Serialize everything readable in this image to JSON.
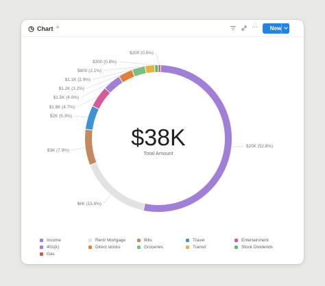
{
  "toolbar": {
    "tab_label": "Chart",
    "add_view": "+",
    "more_label": "···",
    "new_label": "New"
  },
  "center": {
    "value": "$38K",
    "label": "Total Amount"
  },
  "chart_data": {
    "type": "pie",
    "donut": true,
    "slices": [
      {
        "name": "Income",
        "value": 20,
        "label": "$20K (52.8%)",
        "percent": 52.8,
        "color": "#a07fd6"
      },
      {
        "name": "Rent/ Mortgage",
        "value": 6,
        "label": "$6K (15.8%)",
        "percent": 15.8,
        "color": "#e3e2e0"
      },
      {
        "name": "Bills",
        "value": 3,
        "label": "$3K (7.9%)",
        "percent": 7.9,
        "color": "#c48a5e"
      },
      {
        "name": "Travel",
        "value": 2,
        "label": "$2K (5.3%)",
        "percent": 5.3,
        "color": "#3d93d6"
      },
      {
        "name": "Entertainment",
        "value": 1.8,
        "label": "$1.8K (4.7%)",
        "percent": 4.7,
        "color": "#d65a9c"
      },
      {
        "name": "401(k)",
        "value": 1.5,
        "label": "$1.5K (4.0%)",
        "percent": 4.0,
        "color": "#a07fd6"
      },
      {
        "name": "Direct stocks",
        "value": 1.2,
        "label": "$1.2K (3.2%)",
        "percent": 3.2,
        "color": "#e0803a"
      },
      {
        "name": "Groceries",
        "value": 1.1,
        "label": "$1.1K (2.9%)",
        "percent": 2.9,
        "color": "#7bbf82"
      },
      {
        "name": "Transit",
        "value": 0.8,
        "label": "$800 (2.1%)",
        "percent": 2.1,
        "color": "#e0b43e"
      },
      {
        "name": "Stock Dividends",
        "value": 0.3,
        "label": "$300 (0.8%)",
        "percent": 0.8,
        "color": "#5eb87c"
      },
      {
        "name": "Gas",
        "value": 0.2,
        "label": "$200 (0.5%)",
        "percent": 0.5,
        "color": "#d0594e"
      }
    ],
    "legend": [
      {
        "name": "Income",
        "color": "#a07fd6"
      },
      {
        "name": "Rent/ Mortgage",
        "color": "#e3e2e0"
      },
      {
        "name": "Bills",
        "color": "#c48a5e"
      },
      {
        "name": "Travel",
        "color": "#3d93d6"
      },
      {
        "name": "Entertainment",
        "color": "#d65a9c"
      },
      {
        "name": "401(k)",
        "color": "#a07fd6"
      },
      {
        "name": "Direct stocks",
        "color": "#e0803a"
      },
      {
        "name": "Groceries",
        "color": "#7bbf82"
      },
      {
        "name": "Transit",
        "color": "#e0b43e"
      },
      {
        "name": "Stock Dividends",
        "color": "#5eb87c"
      },
      {
        "name": "Gas",
        "color": "#d0594e"
      }
    ],
    "legend_position": "bottom"
  }
}
